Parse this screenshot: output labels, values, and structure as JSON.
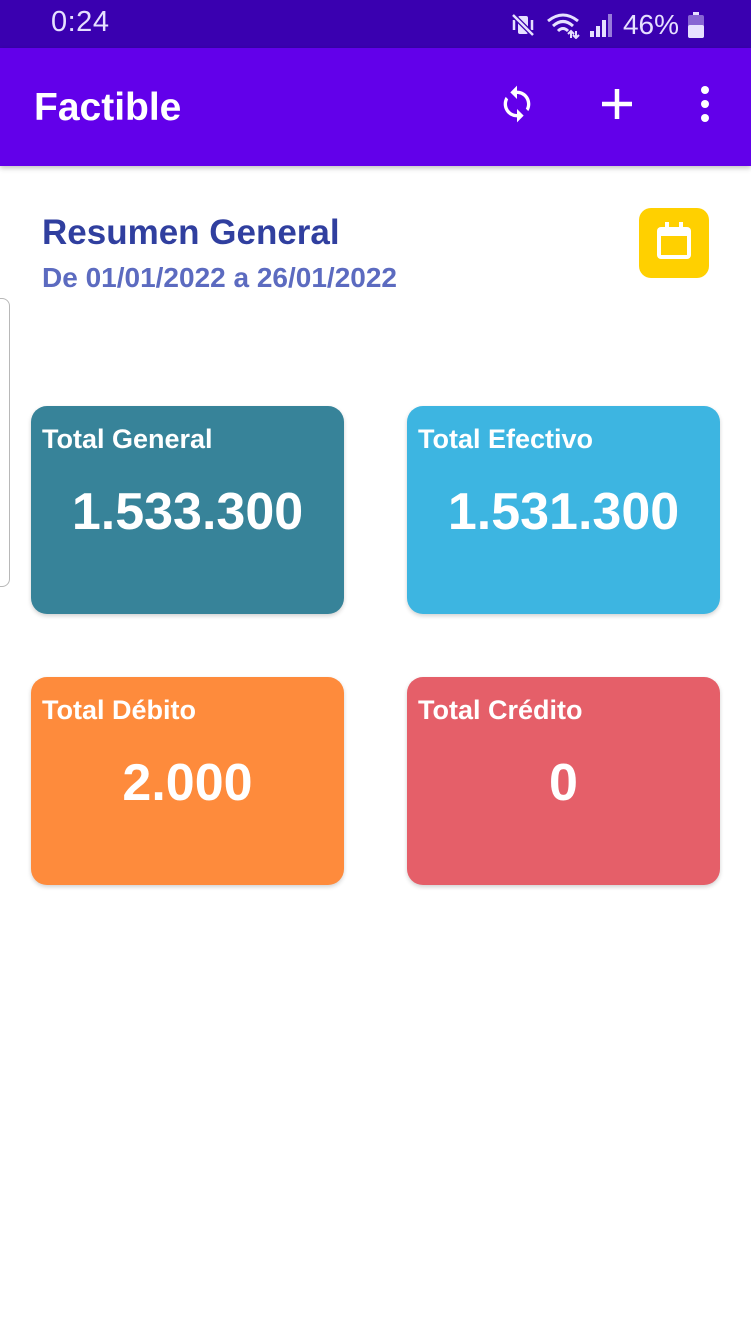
{
  "status_bar": {
    "time": "0:24",
    "battery_percent": "46%",
    "icons": [
      "mute-vibrate-icon",
      "wifi-icon",
      "signal-icon",
      "battery-icon"
    ]
  },
  "app_bar": {
    "title": "Factible",
    "color": "#6200ea",
    "actions": [
      "sync-icon",
      "add-icon",
      "more-vert-icon"
    ]
  },
  "summary": {
    "title": "Resumen General",
    "date_range": "De 01/01/2022 a 26/01/2022",
    "calendar_icon": "calendar-icon",
    "calendar_color": "#ffd000"
  },
  "cards": [
    {
      "label": "Total General",
      "value": "1.533.300",
      "color": "#378399"
    },
    {
      "label": "Total Efectivo",
      "value": "1.531.300",
      "color": "#3db5e1"
    },
    {
      "label": "Total Débito",
      "value": "2.000",
      "color": "#fe8b3c"
    },
    {
      "label": "Total Crédito",
      "value": "0",
      "color": "#e55f69"
    }
  ]
}
